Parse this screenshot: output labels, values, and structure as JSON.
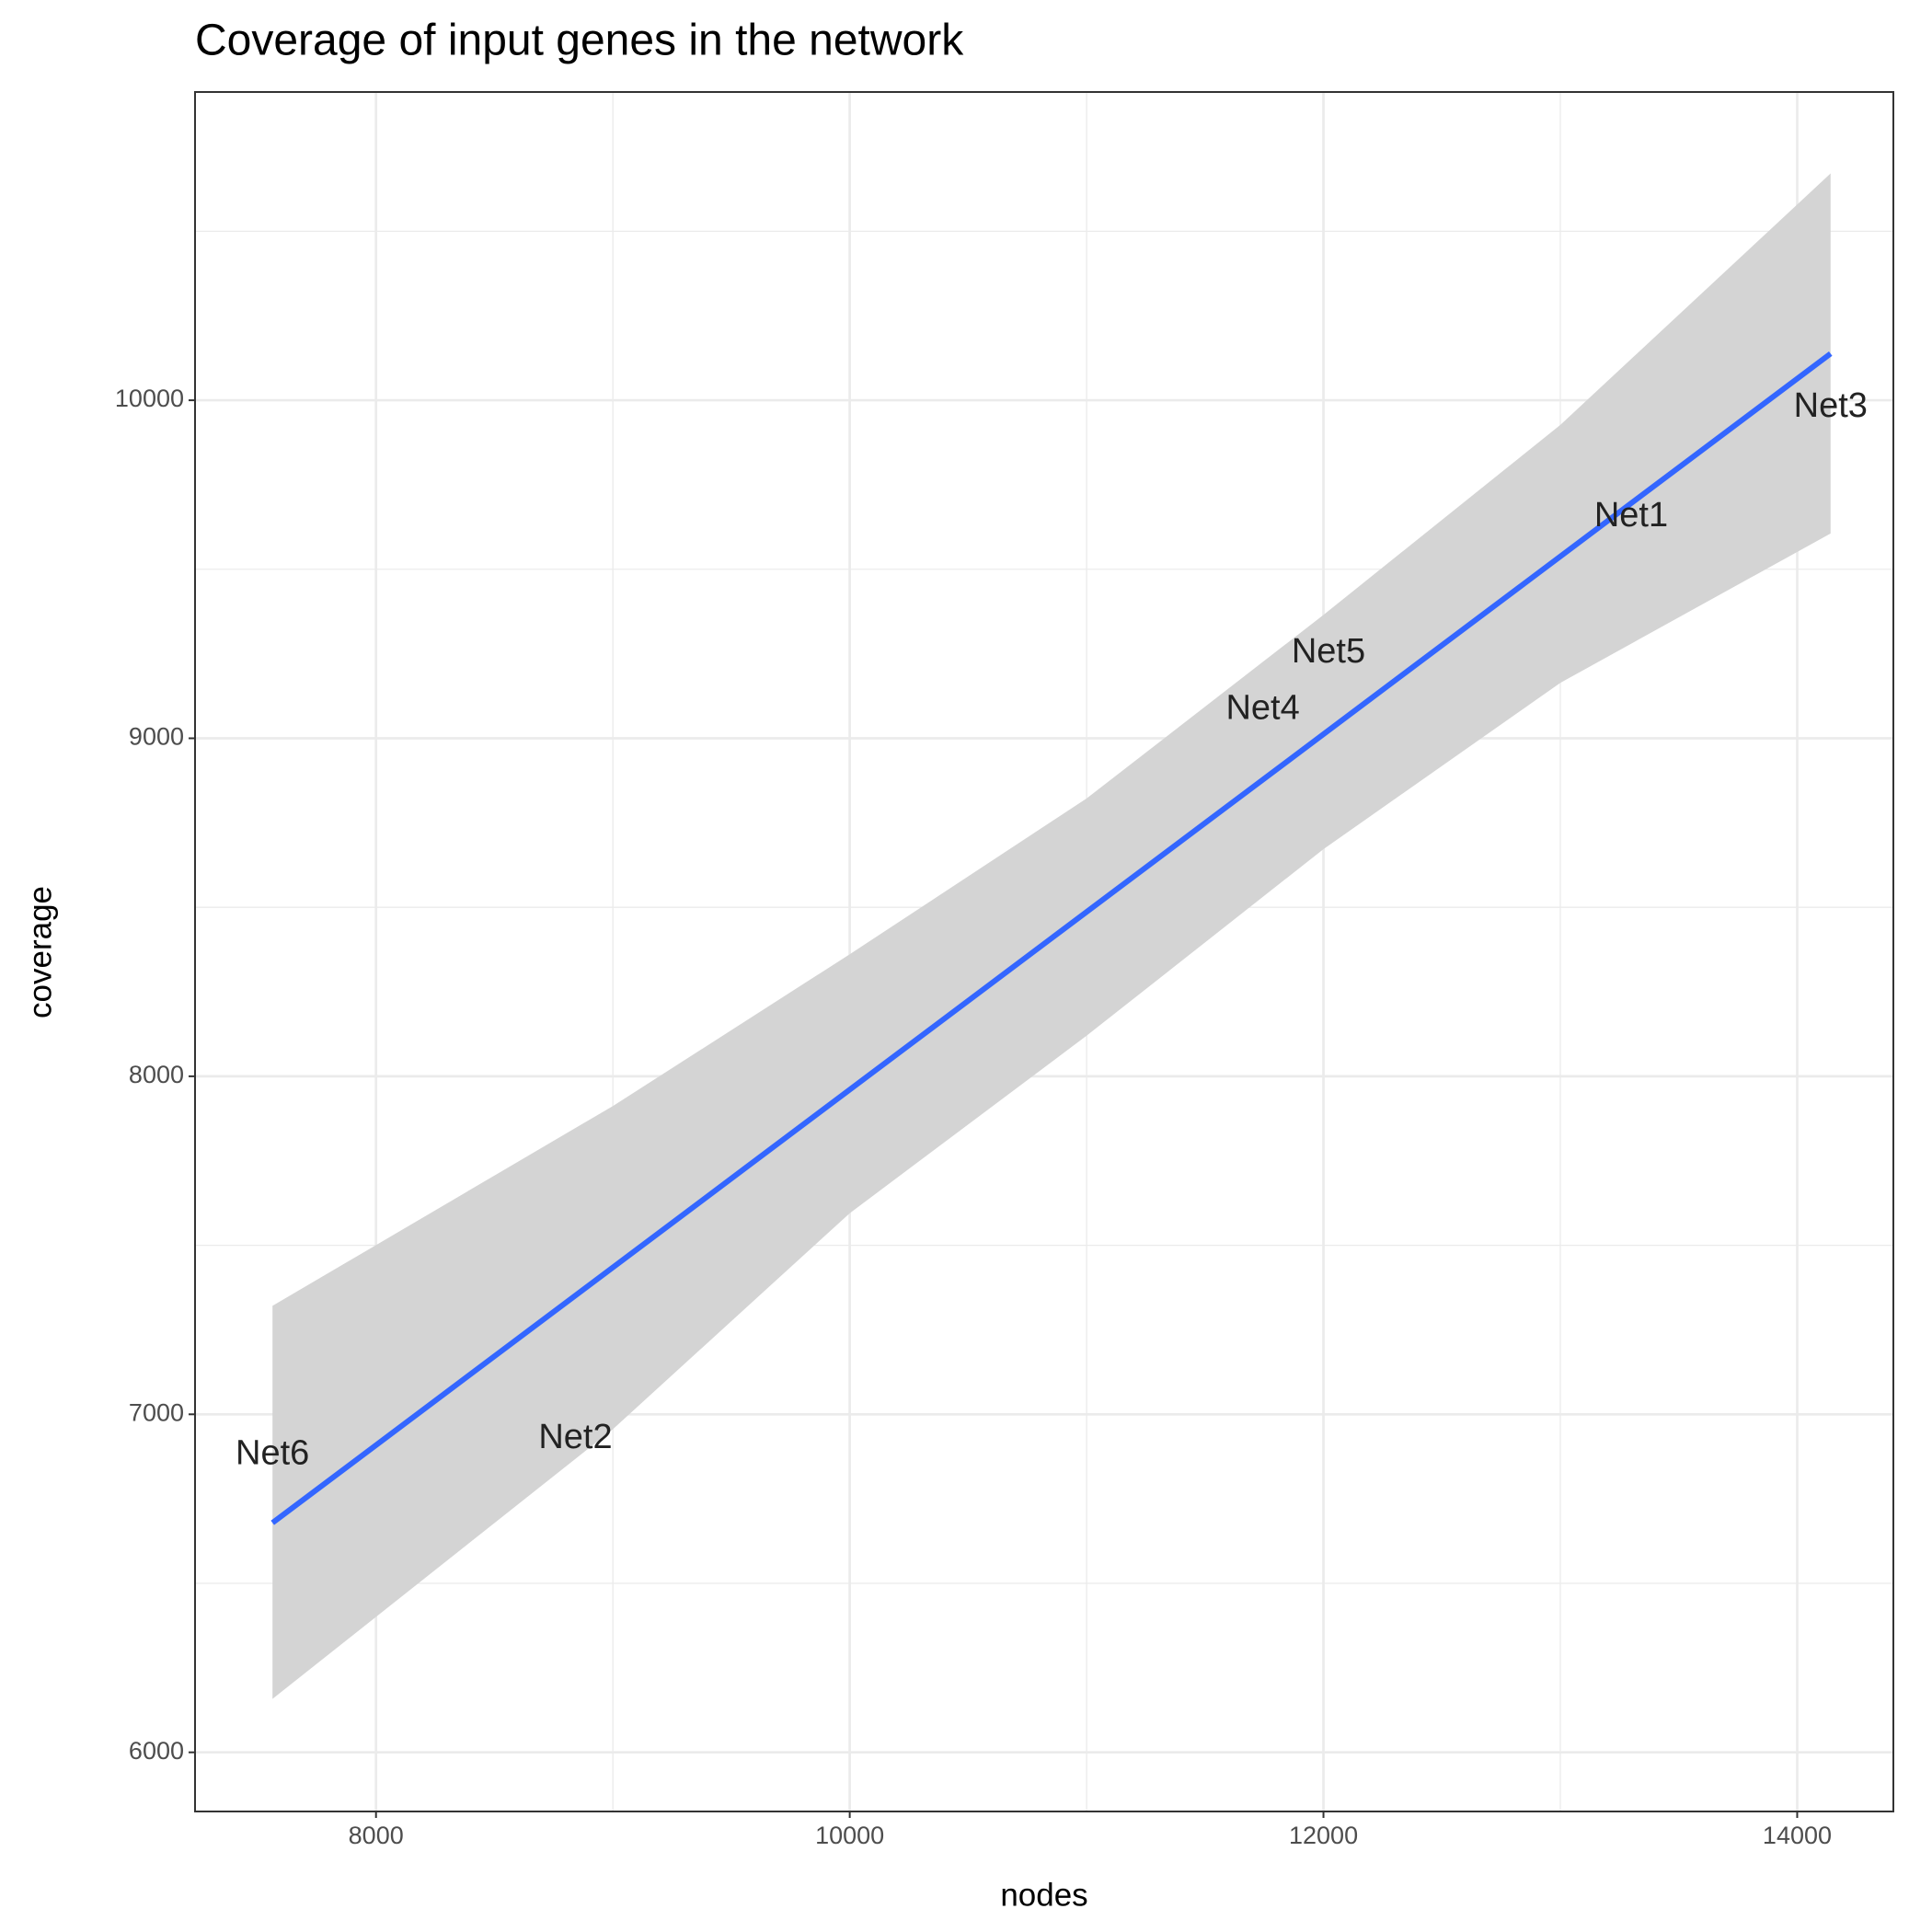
{
  "chart_data": {
    "type": "scatter",
    "title": "Coverage of input genes in the network",
    "x_label": "nodes",
    "y_label": "coverage",
    "xlim": [
      7236,
      14406
    ],
    "ylim": [
      5825,
      10912
    ],
    "xticks": [
      8000,
      10000,
      12000,
      14000
    ],
    "yticks": [
      6000,
      7000,
      8000,
      9000,
      10000
    ],
    "x_minor_ticks": [
      9000,
      11000,
      13000
    ],
    "y_minor_ticks": [
      6500,
      7500,
      8500,
      9500,
      10500
    ],
    "grid": true,
    "points": {
      "labels": [
        "Net1",
        "Net2",
        "Net3",
        "Net4",
        "Net5",
        "Net6"
      ],
      "x": [
        13299,
        8842,
        14141,
        11744,
        12021,
        7563
      ],
      "y": [
        9654,
        6927,
        9978,
        9084,
        9252,
        6880
      ]
    },
    "fit": {
      "color": "#3366ff",
      "x": [
        7563,
        14141
      ],
      "y": [
        6679,
        10138
      ]
    },
    "band": {
      "color": "#d4d4d4",
      "x": [
        7563,
        9000,
        10000,
        11000,
        12000,
        13000,
        14141
      ],
      "upper": [
        7321,
        7912,
        8361,
        8822,
        9365,
        9927,
        10671
      ],
      "lower": [
        6158,
        6956,
        7595,
        8120,
        8672,
        9164,
        9606
      ]
    }
  }
}
